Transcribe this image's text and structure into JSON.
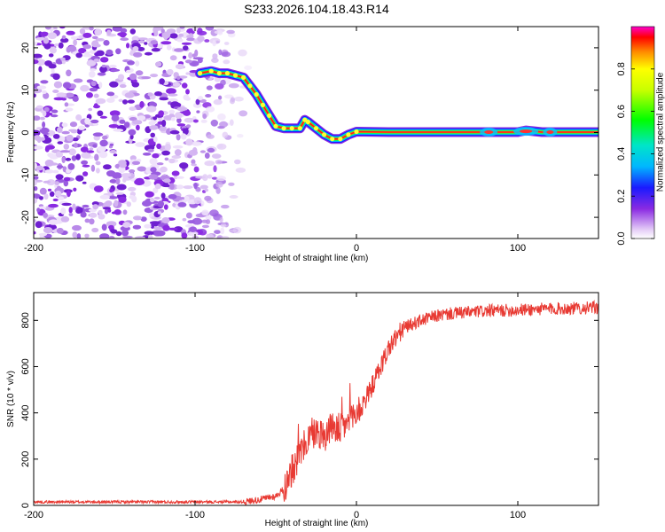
{
  "title": "S233.2026.104.18.43.R14",
  "chart_data": [
    {
      "type": "heatmap",
      "title": "S233.2026.104.18.43.R14",
      "xlabel": "Height of straight line (km)",
      "ylabel": "Frequency (Hz)",
      "xlim": [
        -200,
        150
      ],
      "ylim": [
        -25,
        25
      ],
      "xticks": [
        -200,
        -100,
        0,
        100
      ],
      "xtick_labels": [
        "-200",
        "-100",
        "0",
        "100"
      ],
      "yticks": [
        -20,
        -10,
        0,
        10,
        20
      ],
      "ytick_labels": [
        "-20",
        "-10",
        "0",
        "10",
        "20"
      ],
      "colorbar": {
        "label": "Normalized spectral amplitude",
        "range": [
          0,
          1
        ],
        "ticks": [
          0.0,
          0.2,
          0.4,
          0.6,
          0.8
        ],
        "tick_labels": [
          "0.0",
          "0.2",
          "0.4",
          "0.6",
          "0.8"
        ]
      },
      "noise_region_x": [
        -200,
        -65
      ],
      "ridge": {
        "x": [
          -97,
          -90,
          -85,
          -80,
          -75,
          -70,
          -66,
          -62,
          -58,
          -54,
          -50,
          -45,
          -40,
          -35,
          -32,
          -30,
          -25,
          -20,
          -15,
          -10,
          -5,
          0,
          20,
          50,
          80,
          100,
          105,
          115,
          130,
          150
        ],
        "y": [
          14,
          14.5,
          14,
          14,
          13.5,
          13,
          11,
          9,
          6.5,
          4,
          1.5,
          1,
          1,
          1,
          3,
          2.5,
          1,
          -0.5,
          -1.5,
          -1.5,
          -0.5,
          0.2,
          0.1,
          0.1,
          0.1,
          0.1,
          0.5,
          0.1,
          0.1,
          0.1
        ]
      }
    },
    {
      "type": "line",
      "xlabel": "Height of straight line (km)",
      "ylabel": "SNR (10 * v/v)",
      "xlim": [
        -200,
        150
      ],
      "ylim": [
        0,
        920
      ],
      "xticks": [
        -200,
        -100,
        0,
        100
      ],
      "xtick_labels": [
        "-200",
        "-100",
        "0",
        "100"
      ],
      "yticks": [
        0,
        200,
        400,
        600,
        800
      ],
      "ytick_labels": [
        "0",
        "200",
        "400",
        "600",
        "800"
      ],
      "series": [
        {
          "name": "SNR",
          "color": "#e83a33",
          "trend_x": [
            -200,
            -150,
            -100,
            -70,
            -60,
            -50,
            -45,
            -40,
            -35,
            -30,
            -25,
            -20,
            -15,
            -10,
            -5,
            0,
            5,
            10,
            15,
            20,
            25,
            30,
            40,
            50,
            60,
            80,
            100,
            120,
            150
          ],
          "trend_y": [
            15,
            15,
            15,
            15,
            25,
            40,
            70,
            150,
            220,
            290,
            320,
            300,
            340,
            330,
            360,
            400,
            450,
            520,
            600,
            680,
            730,
            770,
            800,
            820,
            830,
            840,
            845,
            850,
            855
          ]
        }
      ]
    }
  ]
}
